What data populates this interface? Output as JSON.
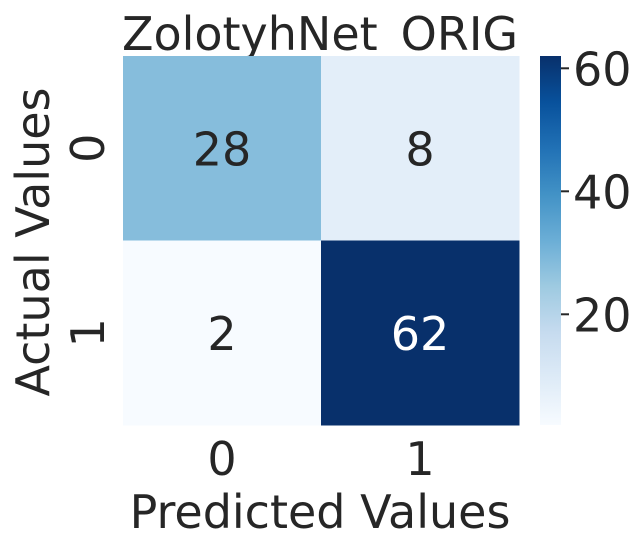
{
  "chart_data": {
    "type": "heatmap",
    "title": "ZolotyhNet_ORIG",
    "xlabel": "Predicted Values",
    "ylabel": "Actual Values",
    "x_categories": [
      "0",
      "1"
    ],
    "y_categories": [
      "0",
      "1"
    ],
    "values": [
      [
        28,
        8
      ],
      [
        2,
        62
      ]
    ],
    "colormap": "Blues",
    "color_range": [
      2,
      62
    ],
    "colorbar_ticks": [
      20,
      40,
      60
    ],
    "colorbar_tick_labels": [
      "20",
      "40",
      "60"
    ],
    "colors": {
      "low": "#f7fbff",
      "high": "#08306b",
      "dark_text": "#262626",
      "light_text": "#ffffff"
    }
  }
}
